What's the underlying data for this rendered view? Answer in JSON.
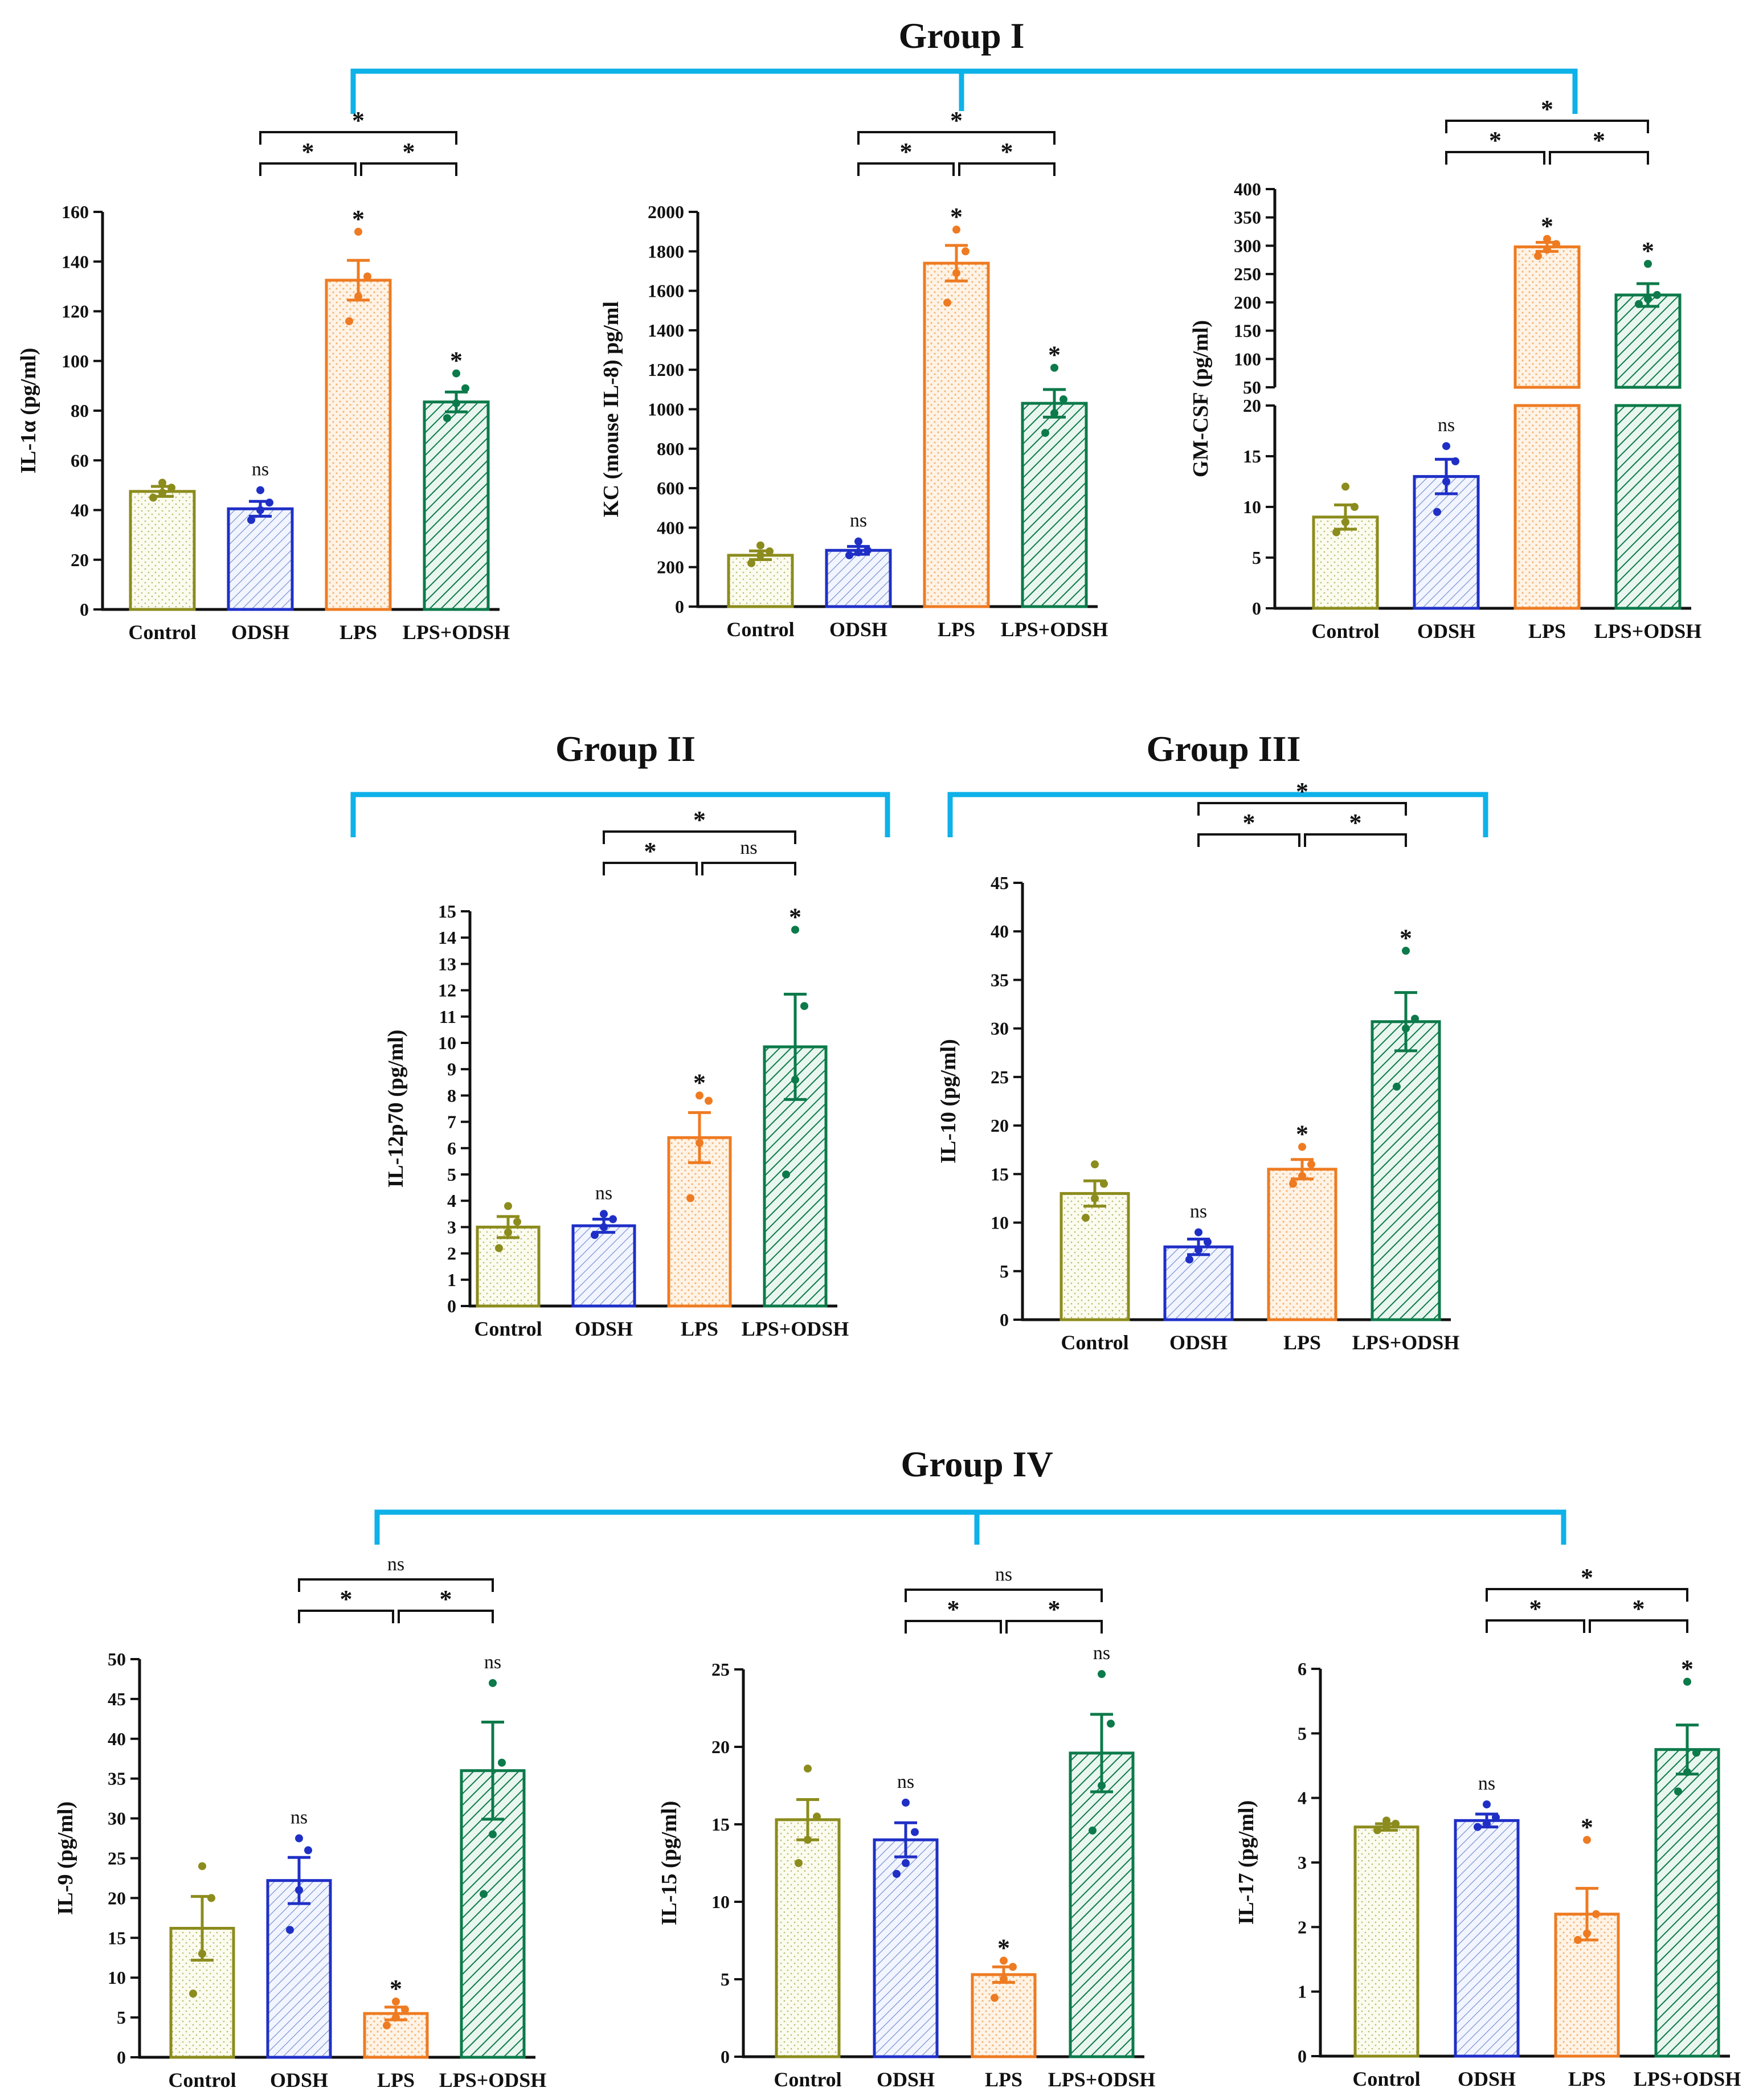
{
  "colors": {
    "bracket": "#0eb1e8",
    "control": "#8c8c1e",
    "odsh": "#1f2fc6",
    "lps": "#ee7b22",
    "lps_odsh": "#0c7a4a"
  },
  "group_titles": [
    "Group I",
    "Group II",
    "Group III",
    "Group IV"
  ],
  "chart_data": [
    {
      "id": "il1a",
      "type": "bar",
      "group": "Group I",
      "ylabel": "IL-1α (pg/ml)",
      "categories": [
        "Control",
        "ODSH",
        "LPS",
        "LPS+ODSH"
      ],
      "values": [
        47.5,
        40.5,
        132.5,
        83.5
      ],
      "sem": [
        2,
        3,
        8,
        4
      ],
      "points": [
        [
          45,
          47,
          49,
          51
        ],
        [
          36,
          40,
          43,
          48
        ],
        [
          116,
          126,
          134,
          152
        ],
        [
          77,
          83,
          89,
          95
        ]
      ],
      "ylim": [
        0,
        160
      ],
      "yticks": [
        0,
        20,
        40,
        60,
        80,
        100,
        120,
        140,
        160
      ],
      "bar_labels": [
        "",
        "ns",
        "*",
        "*"
      ],
      "comparisons": [
        {
          "from": "ODSH",
          "to": "LPS",
          "label": "*"
        },
        {
          "from": "LPS",
          "to": "LPS+ODSH",
          "label": "*"
        },
        {
          "from": "ODSH",
          "to": "LPS+ODSH",
          "label": "*"
        }
      ]
    },
    {
      "id": "kc",
      "type": "bar",
      "group": "Group I",
      "ylabel": "KC (mouse IL-8) pg/ml",
      "categories": [
        "Control",
        "ODSH",
        "LPS",
        "LPS+ODSH"
      ],
      "values": [
        260,
        285,
        1740,
        1030
      ],
      "sem": [
        22,
        20,
        90,
        70
      ],
      "points": [
        [
          220,
          260,
          280,
          310
        ],
        [
          260,
          275,
          285,
          330
        ],
        [
          1540,
          1690,
          1800,
          1910
        ],
        [
          880,
          980,
          1050,
          1210
        ]
      ],
      "ylim": [
        0,
        2000
      ],
      "yticks": [
        0,
        200,
        400,
        600,
        800,
        1000,
        1200,
        1400,
        1600,
        1800,
        2000
      ],
      "bar_labels": [
        "",
        "ns",
        "*",
        "*"
      ],
      "comparisons": [
        {
          "from": "ODSH",
          "to": "LPS",
          "label": "*"
        },
        {
          "from": "LPS",
          "to": "LPS+ODSH",
          "label": "*"
        },
        {
          "from": "ODSH",
          "to": "LPS+ODSH",
          "label": "*"
        }
      ]
    },
    {
      "id": "gmcsf",
      "type": "bar",
      "group": "Group I",
      "ylabel": "GM-CSF (pg/ml)",
      "categories": [
        "Control",
        "ODSH",
        "LPS",
        "LPS+ODSH"
      ],
      "values": [
        9,
        13,
        298,
        213
      ],
      "sem": [
        1.2,
        1.7,
        8,
        20
      ],
      "points": [
        [
          7.5,
          8.5,
          10,
          12
        ],
        [
          9.5,
          12.5,
          14.5,
          16
        ],
        [
          282,
          293,
          303,
          312
        ],
        [
          197,
          206,
          213,
          268
        ]
      ],
      "broken_axis": {
        "lower": [
          0,
          20
        ],
        "upper": [
          50,
          400
        ]
      },
      "yticks": [
        0,
        5,
        10,
        15,
        20,
        50,
        100,
        150,
        200,
        250,
        300,
        350,
        400
      ],
      "bar_labels": [
        "",
        "ns",
        "*",
        "*"
      ],
      "comparisons": [
        {
          "from": "ODSH",
          "to": "LPS",
          "label": "*"
        },
        {
          "from": "LPS",
          "to": "LPS+ODSH",
          "label": "*"
        },
        {
          "from": "ODSH",
          "to": "LPS+ODSH",
          "label": "*"
        }
      ]
    },
    {
      "id": "il12",
      "type": "bar",
      "group": "Group II",
      "ylabel": "IL-12p70 (pg/ml)",
      "categories": [
        "Control",
        "ODSH",
        "LPS",
        "LPS+ODSH"
      ],
      "values": [
        3.0,
        3.05,
        6.4,
        9.85
      ],
      "sem": [
        0.4,
        0.25,
        0.95,
        2.0
      ],
      "points": [
        [
          2.2,
          2.8,
          3.2,
          3.8
        ],
        [
          2.7,
          3.0,
          3.3,
          3.5
        ],
        [
          4.1,
          6.2,
          7.8,
          8.0
        ],
        [
          5.0,
          8.6,
          11.4,
          14.3
        ]
      ],
      "ylim": [
        0,
        15
      ],
      "yticks": [
        0,
        1,
        2,
        3,
        4,
        5,
        6,
        7,
        8,
        9,
        10,
        11,
        12,
        13,
        14,
        15
      ],
      "bar_labels": [
        "",
        "ns",
        "*",
        "*"
      ],
      "comparisons": [
        {
          "from": "ODSH",
          "to": "LPS",
          "label": "*"
        },
        {
          "from": "LPS",
          "to": "LPS+ODSH",
          "label": "ns"
        },
        {
          "from": "ODSH",
          "to": "LPS+ODSH",
          "label": "*"
        }
      ]
    },
    {
      "id": "il10",
      "type": "bar",
      "group": "Group III",
      "ylabel": "IL-10 (pg/ml)",
      "categories": [
        "Control",
        "ODSH",
        "LPS",
        "LPS+ODSH"
      ],
      "values": [
        13,
        7.5,
        15.5,
        30.7
      ],
      "sem": [
        1.3,
        0.8,
        1.0,
        3.0
      ],
      "points": [
        [
          10.5,
          12.5,
          14,
          16
        ],
        [
          6.2,
          7.2,
          8,
          9
        ],
        [
          14,
          14.8,
          16,
          17.8
        ],
        [
          24,
          30,
          31,
          38
        ]
      ],
      "ylim": [
        0,
        45
      ],
      "yticks": [
        0,
        5,
        10,
        15,
        20,
        25,
        30,
        35,
        40,
        45
      ],
      "bar_labels": [
        "",
        "ns",
        "*",
        "*"
      ],
      "comparisons": [
        {
          "from": "ODSH",
          "to": "LPS",
          "label": "*"
        },
        {
          "from": "LPS",
          "to": "LPS+ODSH",
          "label": "*"
        },
        {
          "from": "ODSH",
          "to": "LPS+ODSH",
          "label": "*"
        }
      ]
    },
    {
      "id": "il9",
      "type": "bar",
      "group": "Group IV",
      "ylabel": "IL-9 (pg/ml)",
      "categories": [
        "Control",
        "ODSH",
        "LPS",
        "LPS+ODSH"
      ],
      "values": [
        16.2,
        22.2,
        5.5,
        36.0
      ],
      "sem": [
        4.0,
        2.9,
        0.8,
        6.1
      ],
      "points": [
        [
          8,
          13,
          20,
          24
        ],
        [
          16,
          21,
          26,
          27.5
        ],
        [
          4,
          5,
          6,
          7
        ],
        [
          20.5,
          28,
          37,
          47
        ]
      ],
      "ylim": [
        0,
        50
      ],
      "yticks": [
        0,
        5,
        10,
        15,
        20,
        25,
        30,
        35,
        40,
        45,
        50
      ],
      "bar_labels": [
        "",
        "ns",
        "*",
        "ns"
      ],
      "comparisons": [
        {
          "from": "ODSH",
          "to": "LPS",
          "label": "*"
        },
        {
          "from": "LPS",
          "to": "LPS+ODSH",
          "label": "*"
        },
        {
          "from": "ODSH",
          "to": "LPS+ODSH",
          "label": "ns"
        }
      ]
    },
    {
      "id": "il15",
      "type": "bar",
      "group": "Group IV",
      "ylabel": "IL-15 (pg/ml)",
      "categories": [
        "Control",
        "ODSH",
        "LPS",
        "LPS+ODSH"
      ],
      "values": [
        15.3,
        14.0,
        5.3,
        19.6
      ],
      "sem": [
        1.3,
        1.1,
        0.5,
        2.5
      ],
      "points": [
        [
          12.5,
          14,
          15.5,
          18.6
        ],
        [
          11.8,
          12.5,
          14.5,
          16.4
        ],
        [
          3.8,
          5.0,
          5.8,
          6.2
        ],
        [
          14.6,
          17.5,
          21.5,
          24.7
        ]
      ],
      "ylim": [
        0,
        25
      ],
      "yticks": [
        0,
        5,
        10,
        15,
        20,
        25
      ],
      "bar_labels": [
        "",
        "ns",
        "*",
        "ns"
      ],
      "comparisons": [
        {
          "from": "ODSH",
          "to": "LPS",
          "label": "*"
        },
        {
          "from": "LPS",
          "to": "LPS+ODSH",
          "label": "*"
        },
        {
          "from": "ODSH",
          "to": "LPS+ODSH",
          "label": "ns"
        }
      ]
    },
    {
      "id": "il17",
      "type": "bar",
      "group": "Group IV",
      "ylabel": "IL-17 (pg/ml)",
      "categories": [
        "Control",
        "ODSH",
        "LPS",
        "LPS+ODSH"
      ],
      "values": [
        3.55,
        3.65,
        2.2,
        4.75
      ],
      "sem": [
        0.05,
        0.1,
        0.4,
        0.38
      ],
      "points": [
        [
          3.5,
          3.55,
          3.6,
          3.65
        ],
        [
          3.55,
          3.6,
          3.7,
          3.9
        ],
        [
          1.8,
          1.9,
          2.2,
          3.35
        ],
        [
          4.1,
          4.4,
          4.7,
          5.8
        ]
      ],
      "ylim": [
        0,
        6
      ],
      "yticks": [
        0,
        1,
        2,
        3,
        4,
        5,
        6
      ],
      "bar_labels": [
        "",
        "ns",
        "*",
        "*"
      ],
      "comparisons": [
        {
          "from": "ODSH",
          "to": "LPS",
          "label": "*"
        },
        {
          "from": "LPS",
          "to": "LPS+ODSH",
          "label": "*"
        },
        {
          "from": "ODSH",
          "to": "LPS+ODSH",
          "label": "*"
        }
      ]
    }
  ]
}
